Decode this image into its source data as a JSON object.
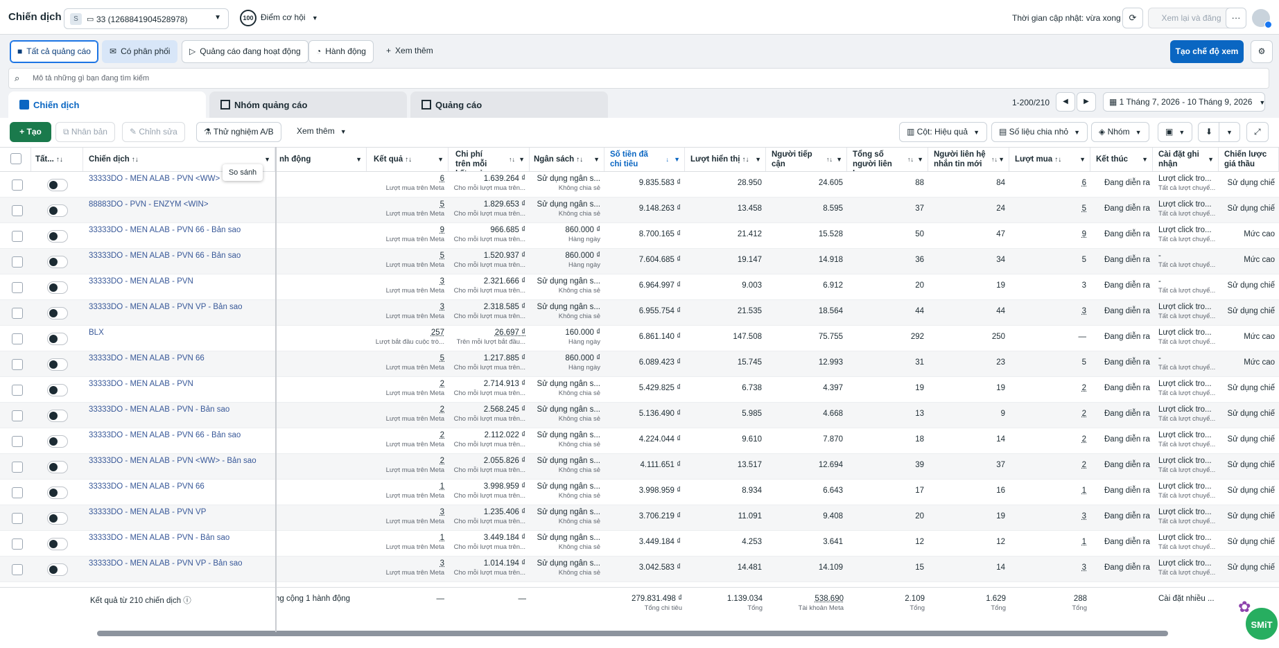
{
  "topbar": {
    "title": "Chiến dịch",
    "account_initial": "S",
    "account": "33 (1268841904528978)",
    "opportunity_score": "100",
    "opportunity_label": "Điểm cơ hội",
    "update_time": "Thời gian cập nhật: vừa xong",
    "review_publish": "Xem lại và đăng"
  },
  "filters": {
    "all_ads": "Tất cả quảng cáo",
    "has_delivery": "Có phân phối",
    "active_ads": "Quảng cáo đang hoạt động",
    "action": "Hành động",
    "see_more": "Xem thêm",
    "create_view": "Tạo chế độ xem"
  },
  "search": {
    "placeholder": "Mô tả những gì bạn đang tìm kiếm"
  },
  "tabs": {
    "campaigns": "Chiến dịch",
    "adsets": "Nhóm quảng cáo",
    "ads": "Quảng cáo"
  },
  "pagination": {
    "range": "1-200/210",
    "date_range": "1 Tháng 7, 2026 - 10 Tháng 9, 2026"
  },
  "toolbar": {
    "create": "Tạo",
    "duplicate": "Nhân bản",
    "edit": "Chỉnh sửa",
    "ab_test": "Thử nghiệm A/B",
    "see_more": "Xem thêm",
    "columns": "Cột: Hiệu quả",
    "breakdown": "Số liệu chia nhỏ",
    "group": "Nhóm"
  },
  "tooltip": "So sánh",
  "headers": {
    "all": "Tất...",
    "campaign": "Chiến dịch",
    "delivery": "nh động",
    "results": "Kết quả",
    "cpr": "Chi phí trên mỗi kết quả",
    "budget": "Ngân sách",
    "spent": "Số tiền đã chi tiêu",
    "impressions": "Lượt hiển thị",
    "reach": "Người tiếp cận",
    "total_contacts": "Tổng số người liên h...",
    "new_contacts": "Người liên hệ nhắn tin mới",
    "purchases": "Lượt mua",
    "ends": "Kết thúc",
    "attribution": "Cài đặt ghi nhận",
    "bid_strategy": "Chiến lược giá thầu"
  },
  "rows": [
    {
      "name": "33333DO - MEN ALAB - PVN <WW>",
      "result": "6",
      "result_sub": "Lượt mua trên Meta",
      "cpr": "1.639.264 ₫",
      "cpr_sub": "Cho mỗi lượt mua trên...",
      "budget": "Sử dụng ngân s...",
      "budget_sub": "Không chia sẻ",
      "spent": "9.835.583 ₫",
      "impr": "28.950",
      "reach": "24.605",
      "total": "88",
      "newc": "84",
      "purch": "6",
      "ends": "Đang diễn ra",
      "attr": "Lượt click tro...",
      "attr_sub": "Tất cả lượt chuyể...",
      "bid": "Sử dụng chiế"
    },
    {
      "name": "88883DO - PVN - ENZYM <WIN>",
      "result": "5",
      "result_sub": "Lượt mua trên Meta",
      "cpr": "1.829.653 ₫",
      "cpr_sub": "Cho mỗi lượt mua trên...",
      "budget": "Sử dụng ngân s...",
      "budget_sub": "Không chia sẻ",
      "spent": "9.148.263 ₫",
      "impr": "13.458",
      "reach": "8.595",
      "total": "37",
      "newc": "24",
      "purch": "5",
      "ends": "Đang diễn ra",
      "attr": "Lượt click tro...",
      "attr_sub": "Tất cả lượt chuyể...",
      "bid": "Sử dụng chiế"
    },
    {
      "name": "33333DO - MEN ALAB - PVN 66 - Bản sao",
      "result": "9",
      "result_sub": "Lượt mua trên Meta",
      "cpr": "966.685 ₫",
      "cpr_sub": "Cho mỗi lượt mua trên...",
      "budget": "860.000 ₫",
      "budget_sub": "Hàng ngày",
      "spent": "8.700.165 ₫",
      "impr": "21.412",
      "reach": "15.528",
      "total": "50",
      "newc": "47",
      "purch": "9",
      "ends": "Đang diễn ra",
      "attr": "Lượt click tro...",
      "attr_sub": "Tất cả lượt chuyể...",
      "bid": "Mức cao"
    },
    {
      "name": "33333DO - MEN ALAB - PVN 66 - Bản sao",
      "result": "5",
      "result_sub": "Lượt mua trên Meta",
      "cpr": "1.520.937 ₫",
      "cpr_sub": "Cho mỗi lượt mua trên...",
      "budget": "860.000 ₫",
      "budget_sub": "Hàng ngày",
      "spent": "7.604.685 ₫",
      "impr": "19.147",
      "reach": "14.918",
      "total": "36",
      "newc": "34",
      "purch": "5",
      "ends": "Đang diễn ra",
      "attr": "-",
      "attr_sub": "Tất cả lượt chuyể...",
      "bid": "Mức cao"
    },
    {
      "name": "33333DO - MEN ALAB - PVN",
      "result": "3",
      "result_sub": "Lượt mua trên Meta",
      "cpr": "2.321.666 ₫",
      "cpr_sub": "Cho mỗi lượt mua trên...",
      "budget": "Sử dụng ngân s...",
      "budget_sub": "Không chia sẻ",
      "spent": "6.964.997 ₫",
      "impr": "9.003",
      "reach": "6.912",
      "total": "20",
      "newc": "19",
      "purch": "3",
      "ends": "Đang diễn ra",
      "attr": "-",
      "attr_sub": "Tất cả lượt chuyể...",
      "bid": "Sử dụng chiế"
    },
    {
      "name": "33333DO - MEN ALAB - PVN VP - Bản sao",
      "result": "3",
      "result_sub": "Lượt mua trên Meta",
      "cpr": "2.318.585 ₫",
      "cpr_sub": "Cho mỗi lượt mua trên...",
      "budget": "Sử dụng ngân s...",
      "budget_sub": "Không chia sẻ",
      "spent": "6.955.754 ₫",
      "impr": "21.535",
      "reach": "18.564",
      "total": "44",
      "newc": "44",
      "purch": "3",
      "ends": "Đang diễn ra",
      "attr": "Lượt click tro...",
      "attr_sub": "Tất cả lượt chuyể...",
      "bid": "Sử dụng chiế"
    },
    {
      "name": "BLX",
      "result": "257",
      "result_sub": "Lượt bắt đầu cuộc trò...",
      "cpr": "26.697 ₫",
      "cpr_sub": "Trên mỗi lượt bắt đầu...",
      "budget": "160.000 ₫",
      "budget_sub": "Hàng ngày",
      "spent": "6.861.140 ₫",
      "impr": "147.508",
      "reach": "75.755",
      "total": "292",
      "newc": "250",
      "purch": "—",
      "ends": "Đang diễn ra",
      "attr": "Lượt click tro...",
      "attr_sub": "Tất cả lượt chuyể...",
      "bid": "Mức cao"
    },
    {
      "name": "33333DO - MEN ALAB - PVN 66",
      "result": "5",
      "result_sub": "Lượt mua trên Meta",
      "cpr": "1.217.885 ₫",
      "cpr_sub": "Cho mỗi lượt mua trên...",
      "budget": "860.000 ₫",
      "budget_sub": "Hàng ngày",
      "spent": "6.089.423 ₫",
      "impr": "15.745",
      "reach": "12.993",
      "total": "31",
      "newc": "23",
      "purch": "5",
      "ends": "Đang diễn ra",
      "attr": "-",
      "attr_sub": "Tất cả lượt chuyể...",
      "bid": "Mức cao"
    },
    {
      "name": "33333DO - MEN ALAB - PVN",
      "result": "2",
      "result_sub": "Lượt mua trên Meta",
      "cpr": "2.714.913 ₫",
      "cpr_sub": "Cho mỗi lượt mua trên...",
      "budget": "Sử dụng ngân s...",
      "budget_sub": "Không chia sẻ",
      "spent": "5.429.825 ₫",
      "impr": "6.738",
      "reach": "4.397",
      "total": "19",
      "newc": "19",
      "purch": "2",
      "ends": "Đang diễn ra",
      "attr": "Lượt click tro...",
      "attr_sub": "Tất cả lượt chuyể...",
      "bid": "Sử dụng chiế"
    },
    {
      "name": "33333DO - MEN ALAB - PVN - Bản sao",
      "result": "2",
      "result_sub": "Lượt mua trên Meta",
      "cpr": "2.568.245 ₫",
      "cpr_sub": "Cho mỗi lượt mua trên...",
      "budget": "Sử dụng ngân s...",
      "budget_sub": "Không chia sẻ",
      "spent": "5.136.490 ₫",
      "impr": "5.985",
      "reach": "4.668",
      "total": "13",
      "newc": "9",
      "purch": "2",
      "ends": "Đang diễn ra",
      "attr": "Lượt click tro...",
      "attr_sub": "Tất cả lượt chuyể...",
      "bid": "Sử dụng chiế"
    },
    {
      "name": "33333DO - MEN ALAB - PVN 66 - Bản sao",
      "result": "2",
      "result_sub": "Lượt mua trên Meta",
      "cpr": "2.112.022 ₫",
      "cpr_sub": "Cho mỗi lượt mua trên...",
      "budget": "Sử dụng ngân s...",
      "budget_sub": "Không chia sẻ",
      "spent": "4.224.044 ₫",
      "impr": "9.610",
      "reach": "7.870",
      "total": "18",
      "newc": "14",
      "purch": "2",
      "ends": "Đang diễn ra",
      "attr": "Lượt click tro...",
      "attr_sub": "Tất cả lượt chuyể...",
      "bid": "Sử dụng chiế"
    },
    {
      "name": "33333DO - MEN ALAB - PVN <WW> - Bản sao",
      "result": "2",
      "result_sub": "Lượt mua trên Meta",
      "cpr": "2.055.826 ₫",
      "cpr_sub": "Cho mỗi lượt mua trên...",
      "budget": "Sử dụng ngân s...",
      "budget_sub": "Không chia sẻ",
      "spent": "4.111.651 ₫",
      "impr": "13.517",
      "reach": "12.694",
      "total": "39",
      "newc": "37",
      "purch": "2",
      "ends": "Đang diễn ra",
      "attr": "Lượt click tro...",
      "attr_sub": "Tất cả lượt chuyể...",
      "bid": "Sử dụng chiế"
    },
    {
      "name": "33333DO - MEN ALAB - PVN 66",
      "result": "1",
      "result_sub": "Lượt mua trên Meta",
      "cpr": "3.998.959 ₫",
      "cpr_sub": "Cho mỗi lượt mua trên...",
      "budget": "Sử dụng ngân s...",
      "budget_sub": "Không chia sẻ",
      "spent": "3.998.959 ₫",
      "impr": "8.934",
      "reach": "6.643",
      "total": "17",
      "newc": "16",
      "purch": "1",
      "ends": "Đang diễn ra",
      "attr": "Lượt click tro...",
      "attr_sub": "Tất cả lượt chuyể...",
      "bid": "Sử dụng chiế"
    },
    {
      "name": "33333DO - MEN ALAB - PVN VP",
      "result": "3",
      "result_sub": "Lượt mua trên Meta",
      "cpr": "1.235.406 ₫",
      "cpr_sub": "Cho mỗi lượt mua trên...",
      "budget": "Sử dụng ngân s...",
      "budget_sub": "Không chia sẻ",
      "spent": "3.706.219 ₫",
      "impr": "11.091",
      "reach": "9.408",
      "total": "20",
      "newc": "19",
      "purch": "3",
      "ends": "Đang diễn ra",
      "attr": "Lượt click tro...",
      "attr_sub": "Tất cả lượt chuyể...",
      "bid": "Sử dụng chiế"
    },
    {
      "name": "33333DO - MEN ALAB - PVN - Bản sao",
      "result": "1",
      "result_sub": "Lượt mua trên Meta",
      "cpr": "3.449.184 ₫",
      "cpr_sub": "Cho mỗi lượt mua trên...",
      "budget": "Sử dụng ngân s...",
      "budget_sub": "Không chia sẻ",
      "spent": "3.449.184 ₫",
      "impr": "4.253",
      "reach": "3.641",
      "total": "12",
      "newc": "12",
      "purch": "1",
      "ends": "Đang diễn ra",
      "attr": "Lượt click tro...",
      "attr_sub": "Tất cả lượt chuyể...",
      "bid": "Sử dụng chiế"
    },
    {
      "name": "33333DO - MEN ALAB - PVN VP - Bản sao",
      "result": "3",
      "result_sub": "Lượt mua trên Meta",
      "cpr": "1.014.194 ₫",
      "cpr_sub": "Cho mỗi lượt mua trên...",
      "budget": "Sử dụng ngân s...",
      "budget_sub": "Không chia sẻ",
      "spent": "3.042.583 ₫",
      "impr": "14.481",
      "reach": "14.109",
      "total": "15",
      "newc": "14",
      "purch": "3",
      "ends": "Đang diễn ra",
      "attr": "Lượt click tro...",
      "attr_sub": "Tất cả lượt chuyể...",
      "bid": "Sử dụng chiế"
    }
  ],
  "totals": {
    "label": "Kết quả từ 210 chiến dịch",
    "delivery": "ng cộng 1 hành động",
    "result": "—",
    "cpr": "—",
    "spent": "279.831.498 ₫",
    "spent_sub": "Tổng chi tiêu",
    "impr": "1.139.034",
    "impr_sub": "Tổng",
    "reach": "538.690",
    "reach_sub": "Tài khoản Meta",
    "total": "2.109",
    "total_sub": "Tổng",
    "newc": "1.629",
    "newc_sub": "Tổng",
    "purch": "288",
    "purch_sub": "Tổng",
    "attr": "Cài đặt nhiều ..."
  },
  "widget": {
    "label": "SMiT"
  }
}
